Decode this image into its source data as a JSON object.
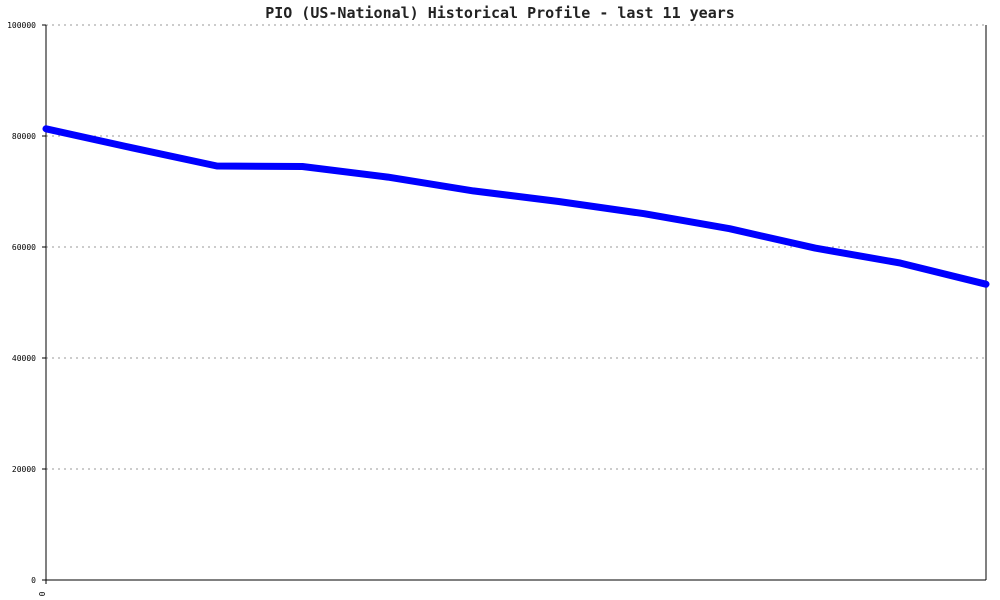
{
  "chart_data": {
    "type": "line",
    "title": "PIO (US-National) Historical Profile - last 11 years",
    "xlabel": "",
    "ylabel": "",
    "x": [
      0,
      1,
      2,
      3,
      4,
      5,
      6,
      7,
      8,
      9,
      10,
      11
    ],
    "x_ticks": [
      {
        "value": 0,
        "label": "0"
      }
    ],
    "ylim": [
      0,
      100000
    ],
    "yticks": [
      0,
      20000,
      40000,
      60000,
      80000,
      100000
    ],
    "grid": true,
    "series": [
      {
        "color": "#0000ff",
        "values": [
          81300,
          77900,
          74600,
          74500,
          72600,
          70100,
          68200,
          66000,
          63300,
          59800,
          57100,
          53300
        ]
      }
    ]
  }
}
